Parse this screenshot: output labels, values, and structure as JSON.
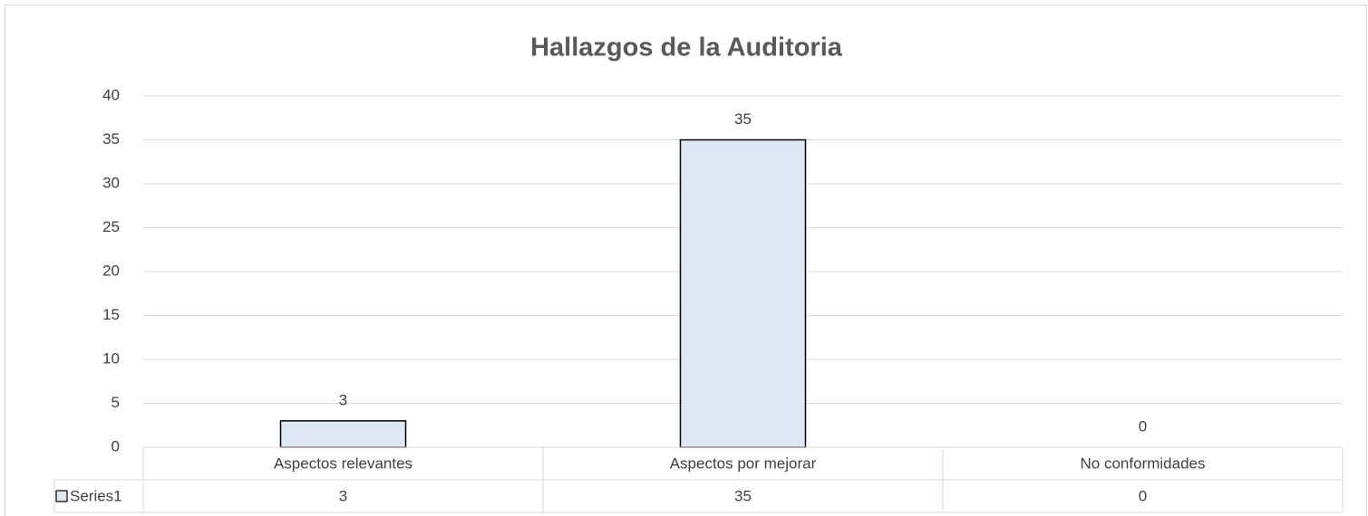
{
  "chart_data": {
    "type": "bar",
    "title": "Hallazgos de la Auditoria",
    "categories": [
      "Aspectos relevantes",
      "Aspectos por mejorar",
      "No conformidades"
    ],
    "series": [
      {
        "name": "Series1",
        "color": "#dee8f5",
        "values": [
          3,
          35,
          0
        ]
      }
    ],
    "ylim": [
      0,
      40
    ],
    "yticks": [
      0,
      5,
      10,
      15,
      20,
      25,
      30,
      35,
      40
    ],
    "grid": true,
    "data_table": true
  }
}
